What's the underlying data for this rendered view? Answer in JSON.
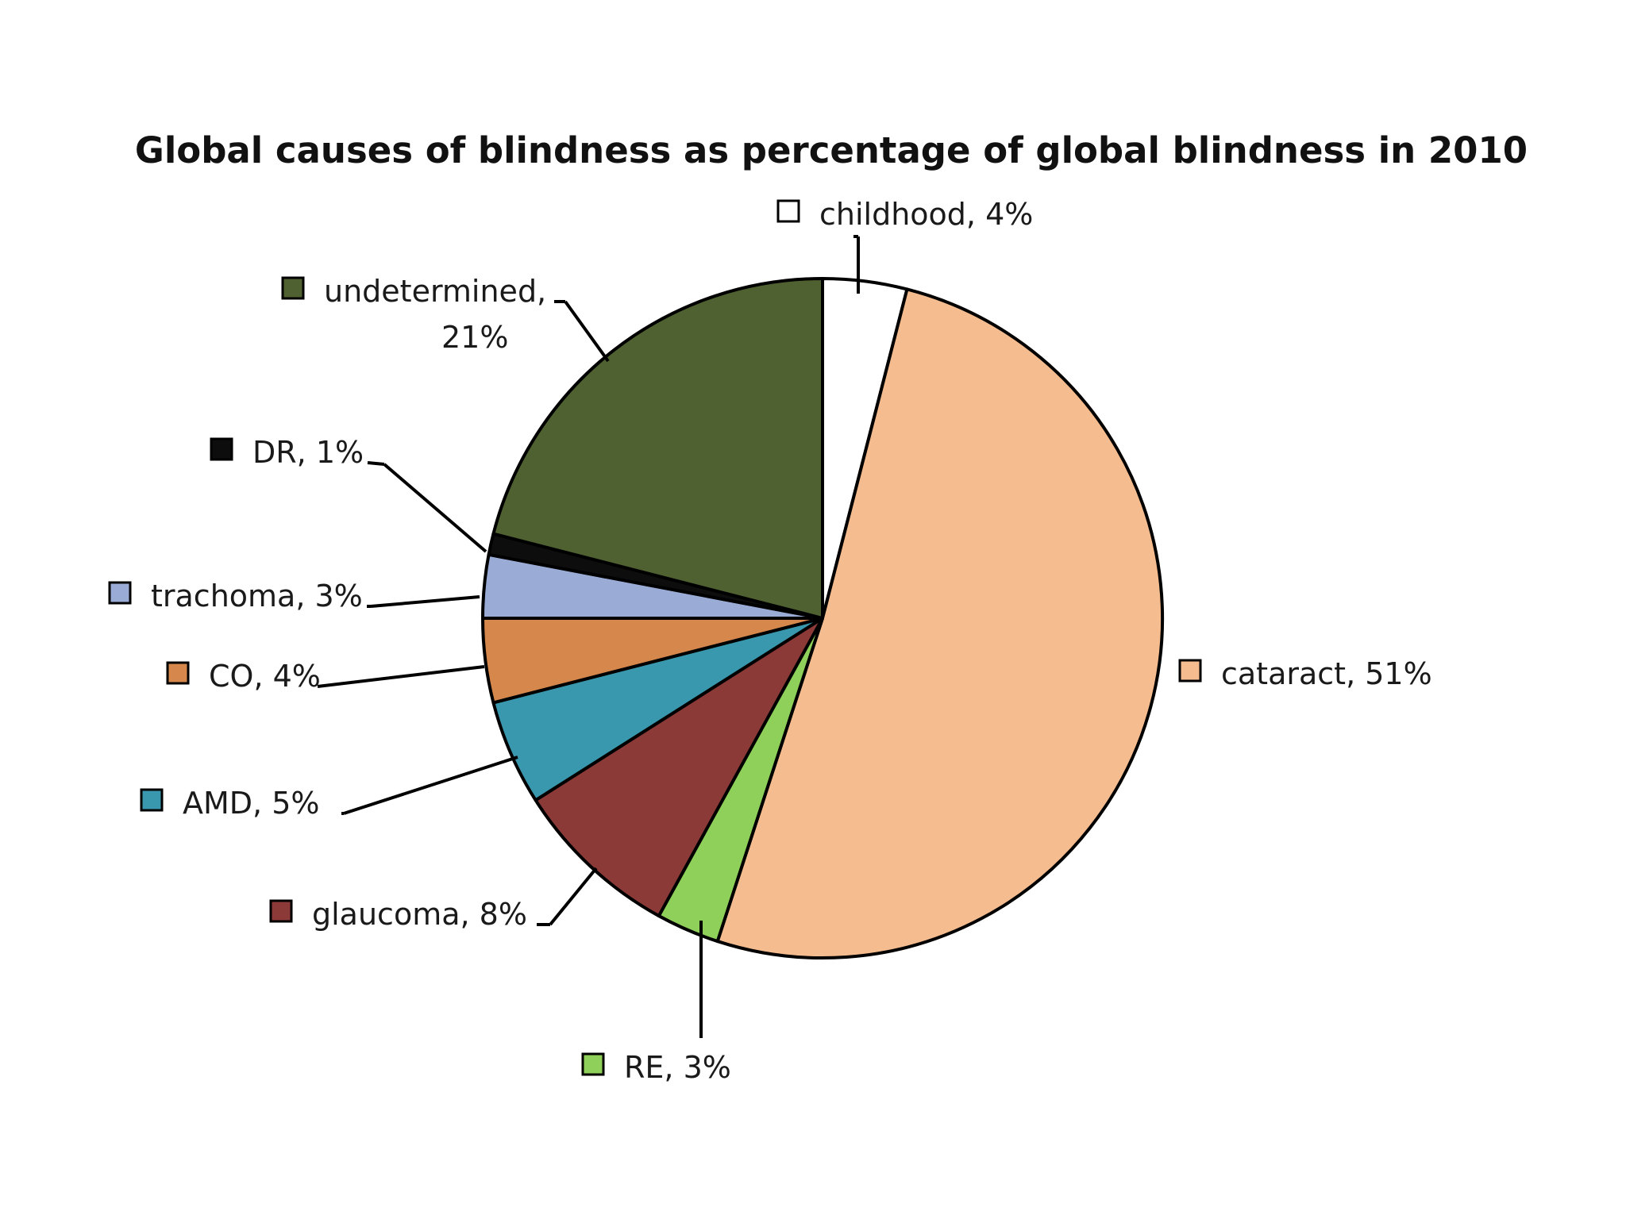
{
  "chart_data": {
    "type": "pie",
    "title": "Global causes of blindness as percentage of global blindness in 2010",
    "slices": [
      {
        "label": "childhood, 4%",
        "category": "childhood",
        "value": 4,
        "color": "#ffffff"
      },
      {
        "label": "cataract, 51%",
        "category": "cataract",
        "value": 51,
        "color": "#f5bd8f"
      },
      {
        "label": "RE, 3%",
        "category": "RE",
        "value": 3,
        "color": "#8fd05a"
      },
      {
        "label": "glaucoma, 8%",
        "category": "glaucoma",
        "value": 8,
        "color": "#8b3a38"
      },
      {
        "label": "AMD, 5%",
        "category": "AMD",
        "value": 5,
        "color": "#3a98ae"
      },
      {
        "label": "CO, 4%",
        "category": "CO",
        "value": 4,
        "color": "#d6874b"
      },
      {
        "label": "trachoma, 3%",
        "category": "trachoma",
        "value": 3,
        "color": "#9aacd6"
      },
      {
        "label": "DR, 1%",
        "category": "DR",
        "value": 1,
        "color": "#0d0d0d"
      },
      {
        "label": [
          "undetermined,",
          "21%"
        ],
        "category": "undetermined",
        "value": 21,
        "color": "#4f6130"
      }
    ]
  }
}
